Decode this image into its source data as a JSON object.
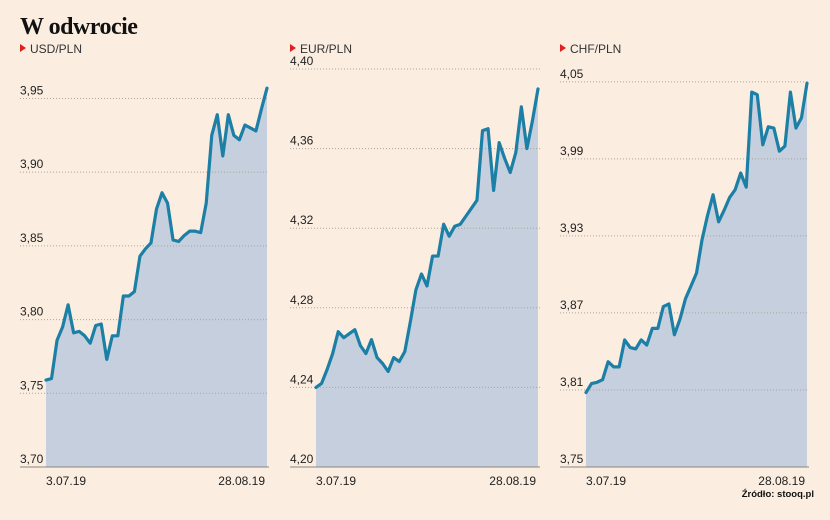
{
  "title": "W odwrocie",
  "source": "Źródło: stooq.pl",
  "colors": {
    "line": "#1c7fa6",
    "area": "#c5cfdd",
    "grid": "#a9a49d",
    "marker": "#e02020",
    "background": "#fbeee1"
  },
  "chart_data": [
    {
      "type": "area",
      "series_label": "USD/PLN",
      "x_start_label": "3.07.19",
      "x_end_label": "28.08.19",
      "ylim": [
        3.7,
        3.97
      ],
      "y_ticks": [
        3.7,
        3.75,
        3.8,
        3.85,
        3.9,
        3.95
      ],
      "y_tick_labels": [
        "3,70",
        "3,75",
        "3,80",
        "3,85",
        "3,90",
        "3,95"
      ],
      "values": [
        3.759,
        3.76,
        3.786,
        3.795,
        3.81,
        3.791,
        3.792,
        3.789,
        3.784,
        3.796,
        3.797,
        3.773,
        3.789,
        3.789,
        3.816,
        3.816,
        3.819,
        3.843,
        3.848,
        3.852,
        3.875,
        3.886,
        3.879,
        3.854,
        3.853,
        3.857,
        3.86,
        3.86,
        3.859,
        3.879,
        3.925,
        3.939,
        3.911,
        3.939,
        3.925,
        3.922,
        3.932,
        3.93,
        3.928,
        3.943,
        3.957
      ]
    },
    {
      "type": "area",
      "series_label": "EUR/PLN",
      "x_start_label": "3.07.19",
      "x_end_label": "28.08.19",
      "ylim": [
        4.2,
        4.4
      ],
      "y_ticks": [
        4.2,
        4.24,
        4.28,
        4.32,
        4.36,
        4.4
      ],
      "y_tick_labels": [
        "4,20",
        "4,24",
        "4,28",
        "4,32",
        "4,36",
        "4,40"
      ],
      "values": [
        4.24,
        4.242,
        4.249,
        4.257,
        4.268,
        4.265,
        4.267,
        4.269,
        4.261,
        4.257,
        4.264,
        4.255,
        4.252,
        4.248,
        4.255,
        4.253,
        4.258,
        4.273,
        4.289,
        4.297,
        4.291,
        4.306,
        4.306,
        4.322,
        4.316,
        4.321,
        4.322,
        4.326,
        4.33,
        4.334,
        4.369,
        4.37,
        4.339,
        4.363,
        4.355,
        4.348,
        4.358,
        4.381,
        4.36,
        4.374,
        4.39
      ]
    },
    {
      "type": "area",
      "series_label": "CHF/PLN",
      "x_start_label": "3.07.19",
      "x_end_label": "28.08.19",
      "ylim": [
        3.75,
        4.06
      ],
      "y_ticks": [
        3.75,
        3.81,
        3.87,
        3.93,
        3.99,
        4.05
      ],
      "y_tick_labels": [
        "3,75",
        "3,81",
        "3,87",
        "3,93",
        "3,99",
        "4,05"
      ],
      "values": [
        3.808,
        3.815,
        3.816,
        3.818,
        3.832,
        3.828,
        3.828,
        3.849,
        3.843,
        3.842,
        3.849,
        3.845,
        3.858,
        3.858,
        3.875,
        3.877,
        3.853,
        3.865,
        3.881,
        3.891,
        3.901,
        3.927,
        3.946,
        3.962,
        3.941,
        3.95,
        3.96,
        3.966,
        3.979,
        3.968,
        4.042,
        4.04,
        4.001,
        4.015,
        4.014,
        3.996,
        4.0,
        4.042,
        4.014,
        4.022,
        4.049
      ]
    }
  ]
}
